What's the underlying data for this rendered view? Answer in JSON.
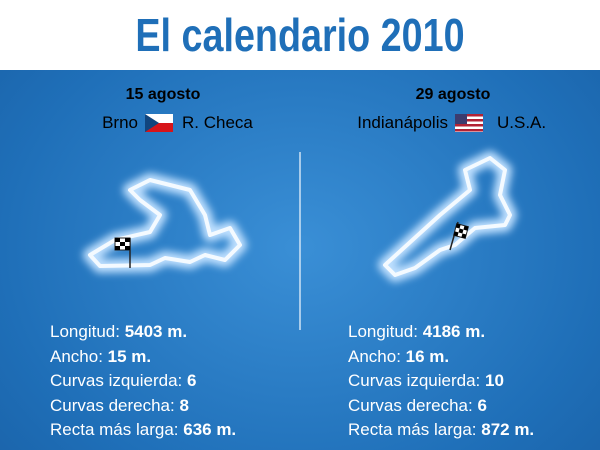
{
  "header": {
    "title": "El calendario 2010"
  },
  "circuits": [
    {
      "date": "15 agosto",
      "city": "Brno",
      "country": "R. Checa",
      "stats": [
        {
          "label": "Longitud:",
          "value": "5403 m."
        },
        {
          "label": "Ancho:",
          "value": "15 m."
        },
        {
          "label": "Curvas izquierda:",
          "value": "6"
        },
        {
          "label": "Curvas derecha:",
          "value": "8"
        },
        {
          "label": "Recta más larga:",
          "value": "636 m."
        }
      ]
    },
    {
      "date": "29 agosto",
      "city": "Indianápolis",
      "country": "U.S.A.",
      "stats": [
        {
          "label": "Longitud:",
          "value": "4186 m."
        },
        {
          "label": "Ancho:",
          "value": "16 m."
        },
        {
          "label": "Curvas izquierda:",
          "value": "10"
        },
        {
          "label": "Curvas derecha:",
          "value": "6"
        },
        {
          "label": "Recta más larga:",
          "value": "872 m."
        }
      ]
    }
  ]
}
